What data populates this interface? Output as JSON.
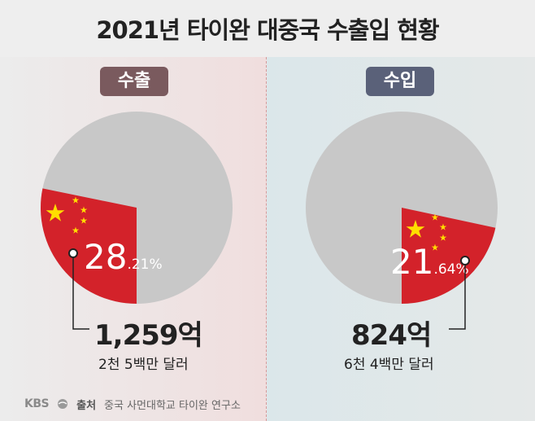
{
  "title": "2021년 타이완 대중국 수출입 현황",
  "chart_data": [
    {
      "type": "pie",
      "label": "수출",
      "share_percent": 28.21,
      "share_main": "28",
      "share_decimal": ".21%",
      "amount": "1,259억",
      "amount_usd": "2천 5백만 달러",
      "colors": {
        "share": "#d3222a",
        "rest": "#c8c8c8"
      }
    },
    {
      "type": "pie",
      "label": "수입",
      "share_percent": 21.64,
      "share_main": "21",
      "share_decimal": ".64%",
      "amount": "824억",
      "amount_usd": "6천 4백만 달러",
      "colors": {
        "share": "#d3222a",
        "rest": "#c8c8c8"
      }
    }
  ],
  "footer": {
    "brand": "KBS",
    "source_label": "출처",
    "source_text": "중국 사먼대학교 타이완 연구소"
  },
  "icons": [
    "china-flag-icon",
    "kbs-logo-icon"
  ]
}
